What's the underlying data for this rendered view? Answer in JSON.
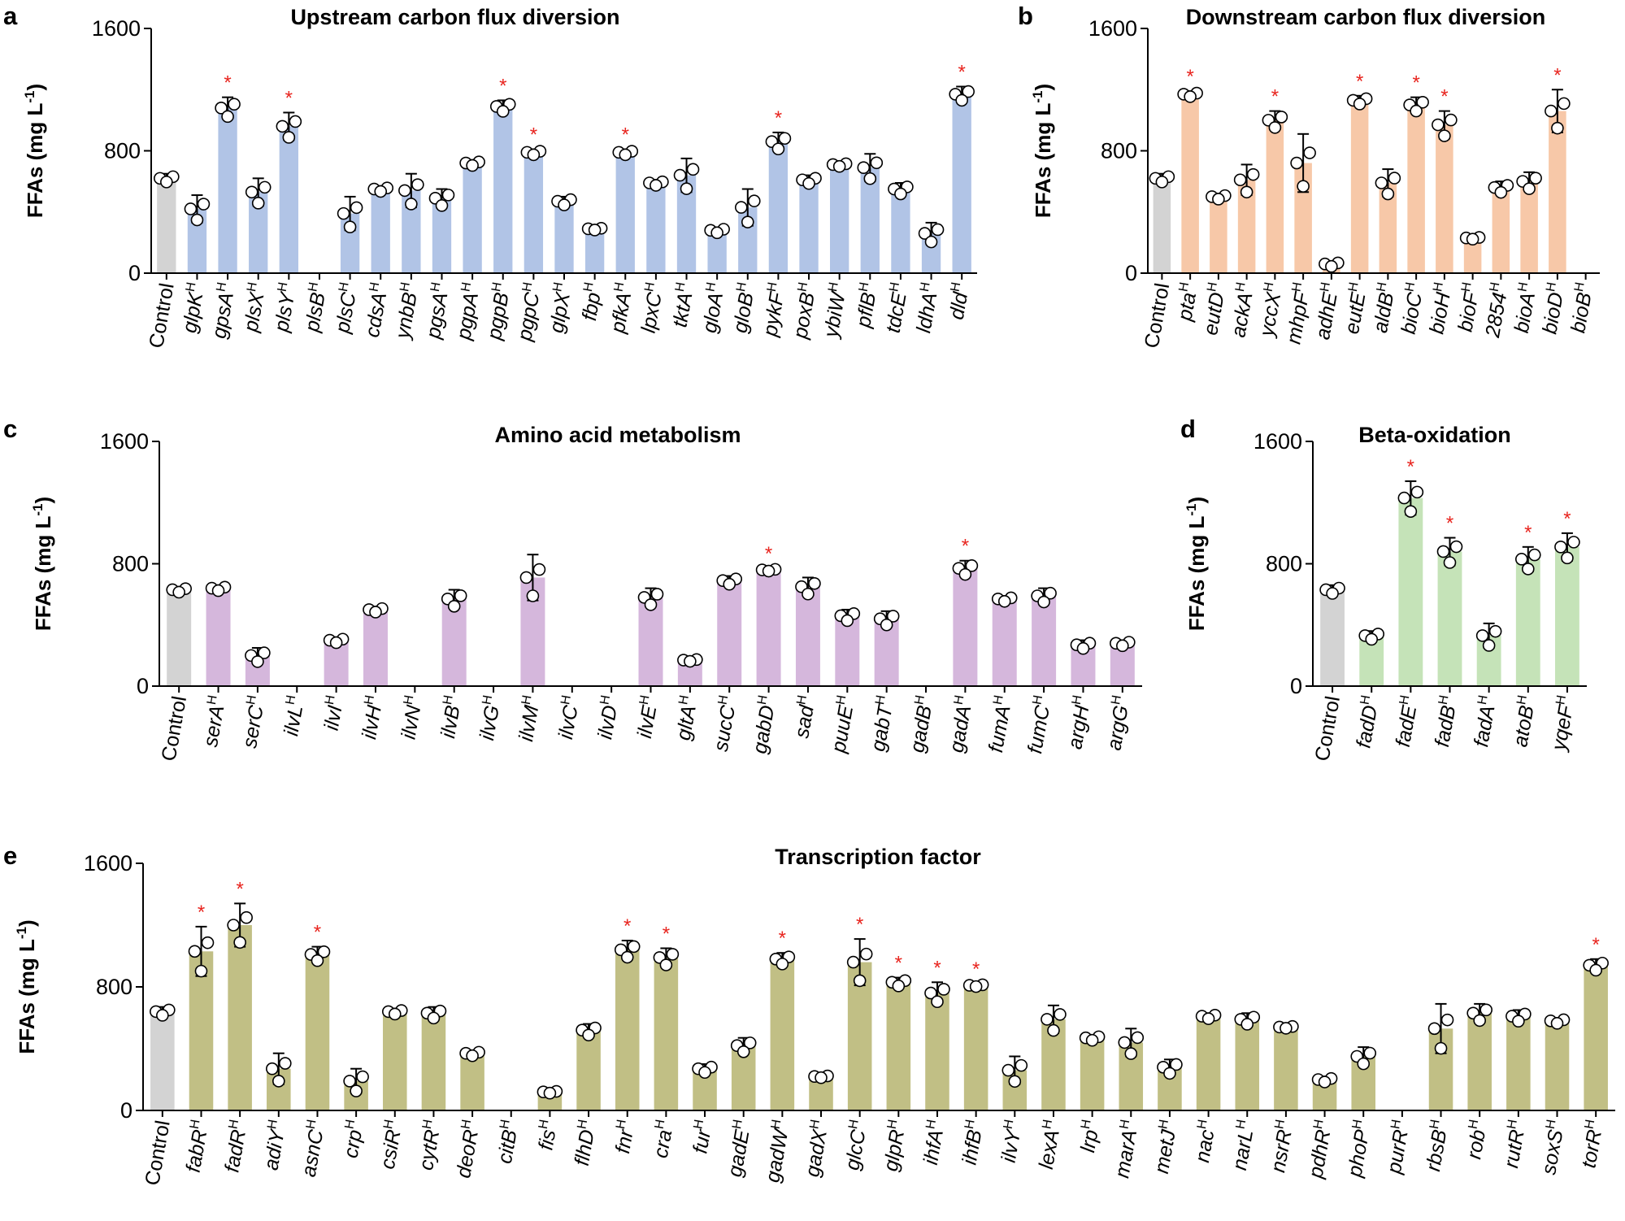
{
  "figure": {
    "ylabel_main": "FFAs (mg L",
    "ylabel_sup": "-1",
    "ylabel_close": ")",
    "sup_mark": "H"
  },
  "chart_data": [
    {
      "panel": "a",
      "type": "bar",
      "title": "Upstream carbon flux diversion",
      "ylabel": "FFAs (mg L-1)",
      "ylim": [
        0,
        1600
      ],
      "yticks": [
        0,
        800,
        1600
      ],
      "bar_color": "#b1c4e6",
      "categories": [
        "Control",
        "glpK",
        "gpsA",
        "plsX",
        "plsY",
        "plsB",
        "plsC",
        "cdsA",
        "ynbB",
        "pgsA",
        "pgpA",
        "pgpB",
        "pgpC",
        "glpX",
        "fbp",
        "pfkA",
        "lpxC",
        "tktA",
        "gloA",
        "gloB",
        "pykF",
        "poxB",
        "ybiW",
        "pflB",
        "tdcE",
        "ldhA",
        "dld"
      ],
      "values": [
        620,
        420,
        1080,
        530,
        960,
        0,
        390,
        550,
        540,
        490,
        720,
        1090,
        790,
        470,
        290,
        790,
        590,
        640,
        280,
        430,
        860,
        610,
        710,
        690,
        550,
        260,
        1170
      ],
      "errors": [
        30,
        90,
        70,
        90,
        90,
        0,
        110,
        20,
        110,
        60,
        20,
        40,
        20,
        30,
        10,
        20,
        20,
        110,
        20,
        120,
        60,
        30,
        15,
        90,
        40,
        70,
        50
      ],
      "significant": [
        false,
        false,
        true,
        false,
        true,
        false,
        false,
        false,
        false,
        false,
        false,
        true,
        true,
        false,
        false,
        true,
        false,
        false,
        false,
        false,
        true,
        false,
        false,
        false,
        false,
        false,
        true
      ]
    },
    {
      "panel": "b",
      "type": "bar",
      "title": "Downstream carbon flux diversion",
      "ylabel": "FFAs (mg L-1)",
      "ylim": [
        0,
        1600
      ],
      "yticks": [
        0,
        800,
        1600
      ],
      "bar_color": "#f7c8a8",
      "categories": [
        "Control",
        "pta",
        "eutD",
        "ackA",
        "yccX",
        "mhpF",
        "adhE",
        "eutE",
        "aldB",
        "bioC",
        "bioH",
        "bioF",
        "2854",
        "bioA",
        "bioD",
        "bioB"
      ],
      "values": [
        620,
        1170,
        500,
        610,
        1000,
        720,
        60,
        1130,
        590,
        1100,
        970,
        230,
        560,
        600,
        1060,
        0
      ],
      "errors": [
        30,
        20,
        20,
        100,
        60,
        190,
        20,
        30,
        90,
        50,
        90,
        10,
        40,
        60,
        140,
        0
      ],
      "significant": [
        false,
        true,
        false,
        false,
        true,
        false,
        false,
        true,
        false,
        true,
        true,
        false,
        false,
        false,
        true,
        false
      ]
    },
    {
      "panel": "c",
      "type": "bar",
      "title": "Amino acid metabolism",
      "ylabel": "FFAs (mg L-1)",
      "ylim": [
        0,
        1600
      ],
      "yticks": [
        0,
        800,
        1600
      ],
      "bar_color": "#d5b7dc",
      "categories": [
        "Control",
        "serA",
        "serC",
        "ilvL",
        "ilvI",
        "ilvH",
        "ilvN",
        "ilvB",
        "ilvG",
        "ilvM",
        "ilvC",
        "ilvD",
        "ilvE",
        "gltA",
        "sucC",
        "gabD",
        "sad",
        "puuE",
        "gabT",
        "gadB",
        "gadA",
        "fumA",
        "fumC",
        "argH",
        "argG"
      ],
      "values": [
        630,
        640,
        200,
        0,
        300,
        500,
        0,
        570,
        0,
        710,
        0,
        0,
        580,
        170,
        690,
        760,
        650,
        460,
        440,
        0,
        770,
        570,
        590,
        270,
        280
      ],
      "errors": [
        20,
        20,
        50,
        0,
        20,
        20,
        0,
        60,
        0,
        150,
        0,
        0,
        60,
        10,
        30,
        10,
        60,
        40,
        50,
        0,
        50,
        20,
        50,
        30,
        20
      ],
      "significant": [
        false,
        false,
        false,
        false,
        false,
        false,
        false,
        false,
        false,
        false,
        false,
        false,
        false,
        false,
        false,
        true,
        false,
        false,
        false,
        false,
        true,
        false,
        false,
        false,
        false
      ]
    },
    {
      "panel": "d",
      "type": "bar",
      "title": "Beta-oxidation",
      "ylabel": "FFAs (mg L-1)",
      "ylim": [
        0,
        1600
      ],
      "yticks": [
        0,
        800,
        1600
      ],
      "bar_color": "#c5e3b8",
      "categories": [
        "Control",
        "fadD",
        "fadE",
        "fadB",
        "fadA",
        "atoB",
        "yqeF"
      ],
      "values": [
        630,
        330,
        1230,
        880,
        330,
        830,
        910
      ],
      "errors": [
        30,
        30,
        110,
        90,
        80,
        80,
        90
      ],
      "significant": [
        false,
        false,
        true,
        true,
        false,
        true,
        true
      ]
    },
    {
      "panel": "e",
      "type": "bar",
      "title": "Transcription factor",
      "ylabel": "FFAs (mg L-1)",
      "ylim": [
        0,
        1600
      ],
      "yticks": [
        0,
        800,
        1600
      ],
      "bar_color": "#c1bf85",
      "categories": [
        "Control",
        "fabR",
        "fadR",
        "adiY",
        "asnC",
        "crp",
        "csiR",
        "cytR",
        "deoR",
        "citB",
        "fis",
        "flhD",
        "fnr",
        "cra",
        "fur",
        "gadE",
        "gadW",
        "gadX",
        "glcC",
        "glpR",
        "ihfA",
        "ihfB",
        "ilvY",
        "lexA",
        "lrp",
        "marA",
        "metJ",
        "nac",
        "narL",
        "nsrR",
        "pdhR",
        "phoP",
        "purR",
        "rbsB",
        "rob",
        "rutR",
        "soxS",
        "torR"
      ],
      "values": [
        640,
        1030,
        1200,
        270,
        1010,
        190,
        640,
        630,
        370,
        0,
        120,
        520,
        1040,
        990,
        270,
        420,
        980,
        220,
        960,
        830,
        760,
        810,
        260,
        590,
        470,
        440,
        280,
        610,
        590,
        540,
        200,
        350,
        0,
        530,
        630,
        610,
        580,
        940
      ],
      "errors": [
        30,
        160,
        140,
        100,
        50,
        80,
        20,
        40,
        20,
        0,
        10,
        40,
        60,
        60,
        30,
        50,
        40,
        10,
        150,
        30,
        70,
        10,
        90,
        90,
        20,
        90,
        50,
        20,
        40,
        10,
        20,
        60,
        0,
        160,
        60,
        40,
        20,
        40
      ],
      "significant": [
        false,
        true,
        true,
        false,
        true,
        false,
        false,
        false,
        false,
        false,
        false,
        false,
        true,
        true,
        false,
        false,
        true,
        false,
        true,
        true,
        true,
        true,
        false,
        false,
        false,
        false,
        false,
        false,
        false,
        false,
        false,
        false,
        false,
        false,
        false,
        false,
        false,
        true
      ]
    }
  ]
}
